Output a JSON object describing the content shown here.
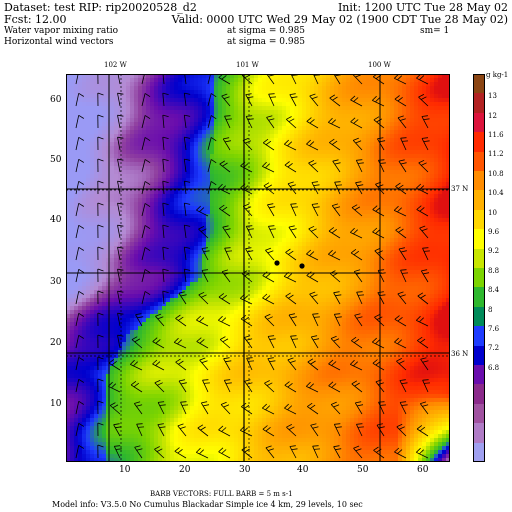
{
  "header": {
    "dataset_line": "Dataset: test   RIP: rip20020528_d2",
    "init_line": "Init: 1200 UTC Tue 28 May 02",
    "fcst_line": "Fcst:    12.00",
    "valid_line": "Valid: 0000 UTC Wed 29 May 02 (1900 CDT Tue 28 May 02)",
    "field1_name": "Water vapor mixing ratio",
    "field1_level": "at sigma = 0.985",
    "field1_extra": "sm= 1",
    "field2_name": "Horizontal wind vectors",
    "field2_level": "at sigma = 0.985"
  },
  "top_lon_labels": [
    "102 W",
    "101 W",
    "100 W"
  ],
  "right_lat_labels": [
    "37 N",
    "36 N"
  ],
  "colorbar": {
    "unit": "g kg-1",
    "labels": [
      "13",
      "12",
      "11.6",
      "11.2",
      "10.8",
      "10.4",
      "10",
      "9.6",
      "9.2",
      "8.8",
      "8.4",
      "8",
      "7.6",
      "7.2",
      "6.8"
    ],
    "colors": [
      "#8b4513",
      "#b22222",
      "#dc143c",
      "#ff2a00",
      "#ff5500",
      "#ff8c00",
      "#ffb000",
      "#ffd700",
      "#ffff00",
      "#c8e600",
      "#7cd400",
      "#2eb82e",
      "#008b5a",
      "#1e3cff",
      "#0000cd",
      "#6a0dad",
      "#8b2a8b",
      "#a052a0",
      "#b07cc6",
      "#a0a0f0"
    ]
  },
  "x_ticks": [
    "10",
    "20",
    "30",
    "40",
    "50",
    "60"
  ],
  "y_ticks": [
    "60",
    "50",
    "40",
    "30",
    "20",
    "10"
  ],
  "footer": {
    "barb_line": "BARB VECTORS:  FULL BARB = 5 m s-1",
    "model_line": "Model info: V3.5.0 No Cumulus Blackadar  Simple ice    4 km,  29 levels,   10 sec"
  },
  "map_field": {
    "title": "Water vapor mixing ratio",
    "color_stops": [
      {
        "at": 0.0,
        "color": "#9a9af5"
      },
      {
        "at": 0.1,
        "color": "#b48ad2"
      },
      {
        "at": 0.16,
        "color": "#9040a0"
      },
      {
        "at": 0.22,
        "color": "#6a0dad"
      },
      {
        "at": 0.3,
        "color": "#0000cd"
      },
      {
        "at": 0.34,
        "color": "#1e3cff"
      },
      {
        "at": 0.4,
        "color": "#2eb82e"
      },
      {
        "at": 0.48,
        "color": "#7cd400"
      },
      {
        "at": 0.54,
        "color": "#c8e600"
      },
      {
        "at": 0.58,
        "color": "#ffff00"
      },
      {
        "at": 0.66,
        "color": "#ffd700"
      },
      {
        "at": 0.74,
        "color": "#ffb000"
      },
      {
        "at": 0.82,
        "color": "#ff8c00"
      },
      {
        "at": 0.9,
        "color": "#ff5500"
      },
      {
        "at": 0.97,
        "color": "#ff2a00"
      },
      {
        "at": 1.0,
        "color": "#e01010"
      }
    ]
  }
}
